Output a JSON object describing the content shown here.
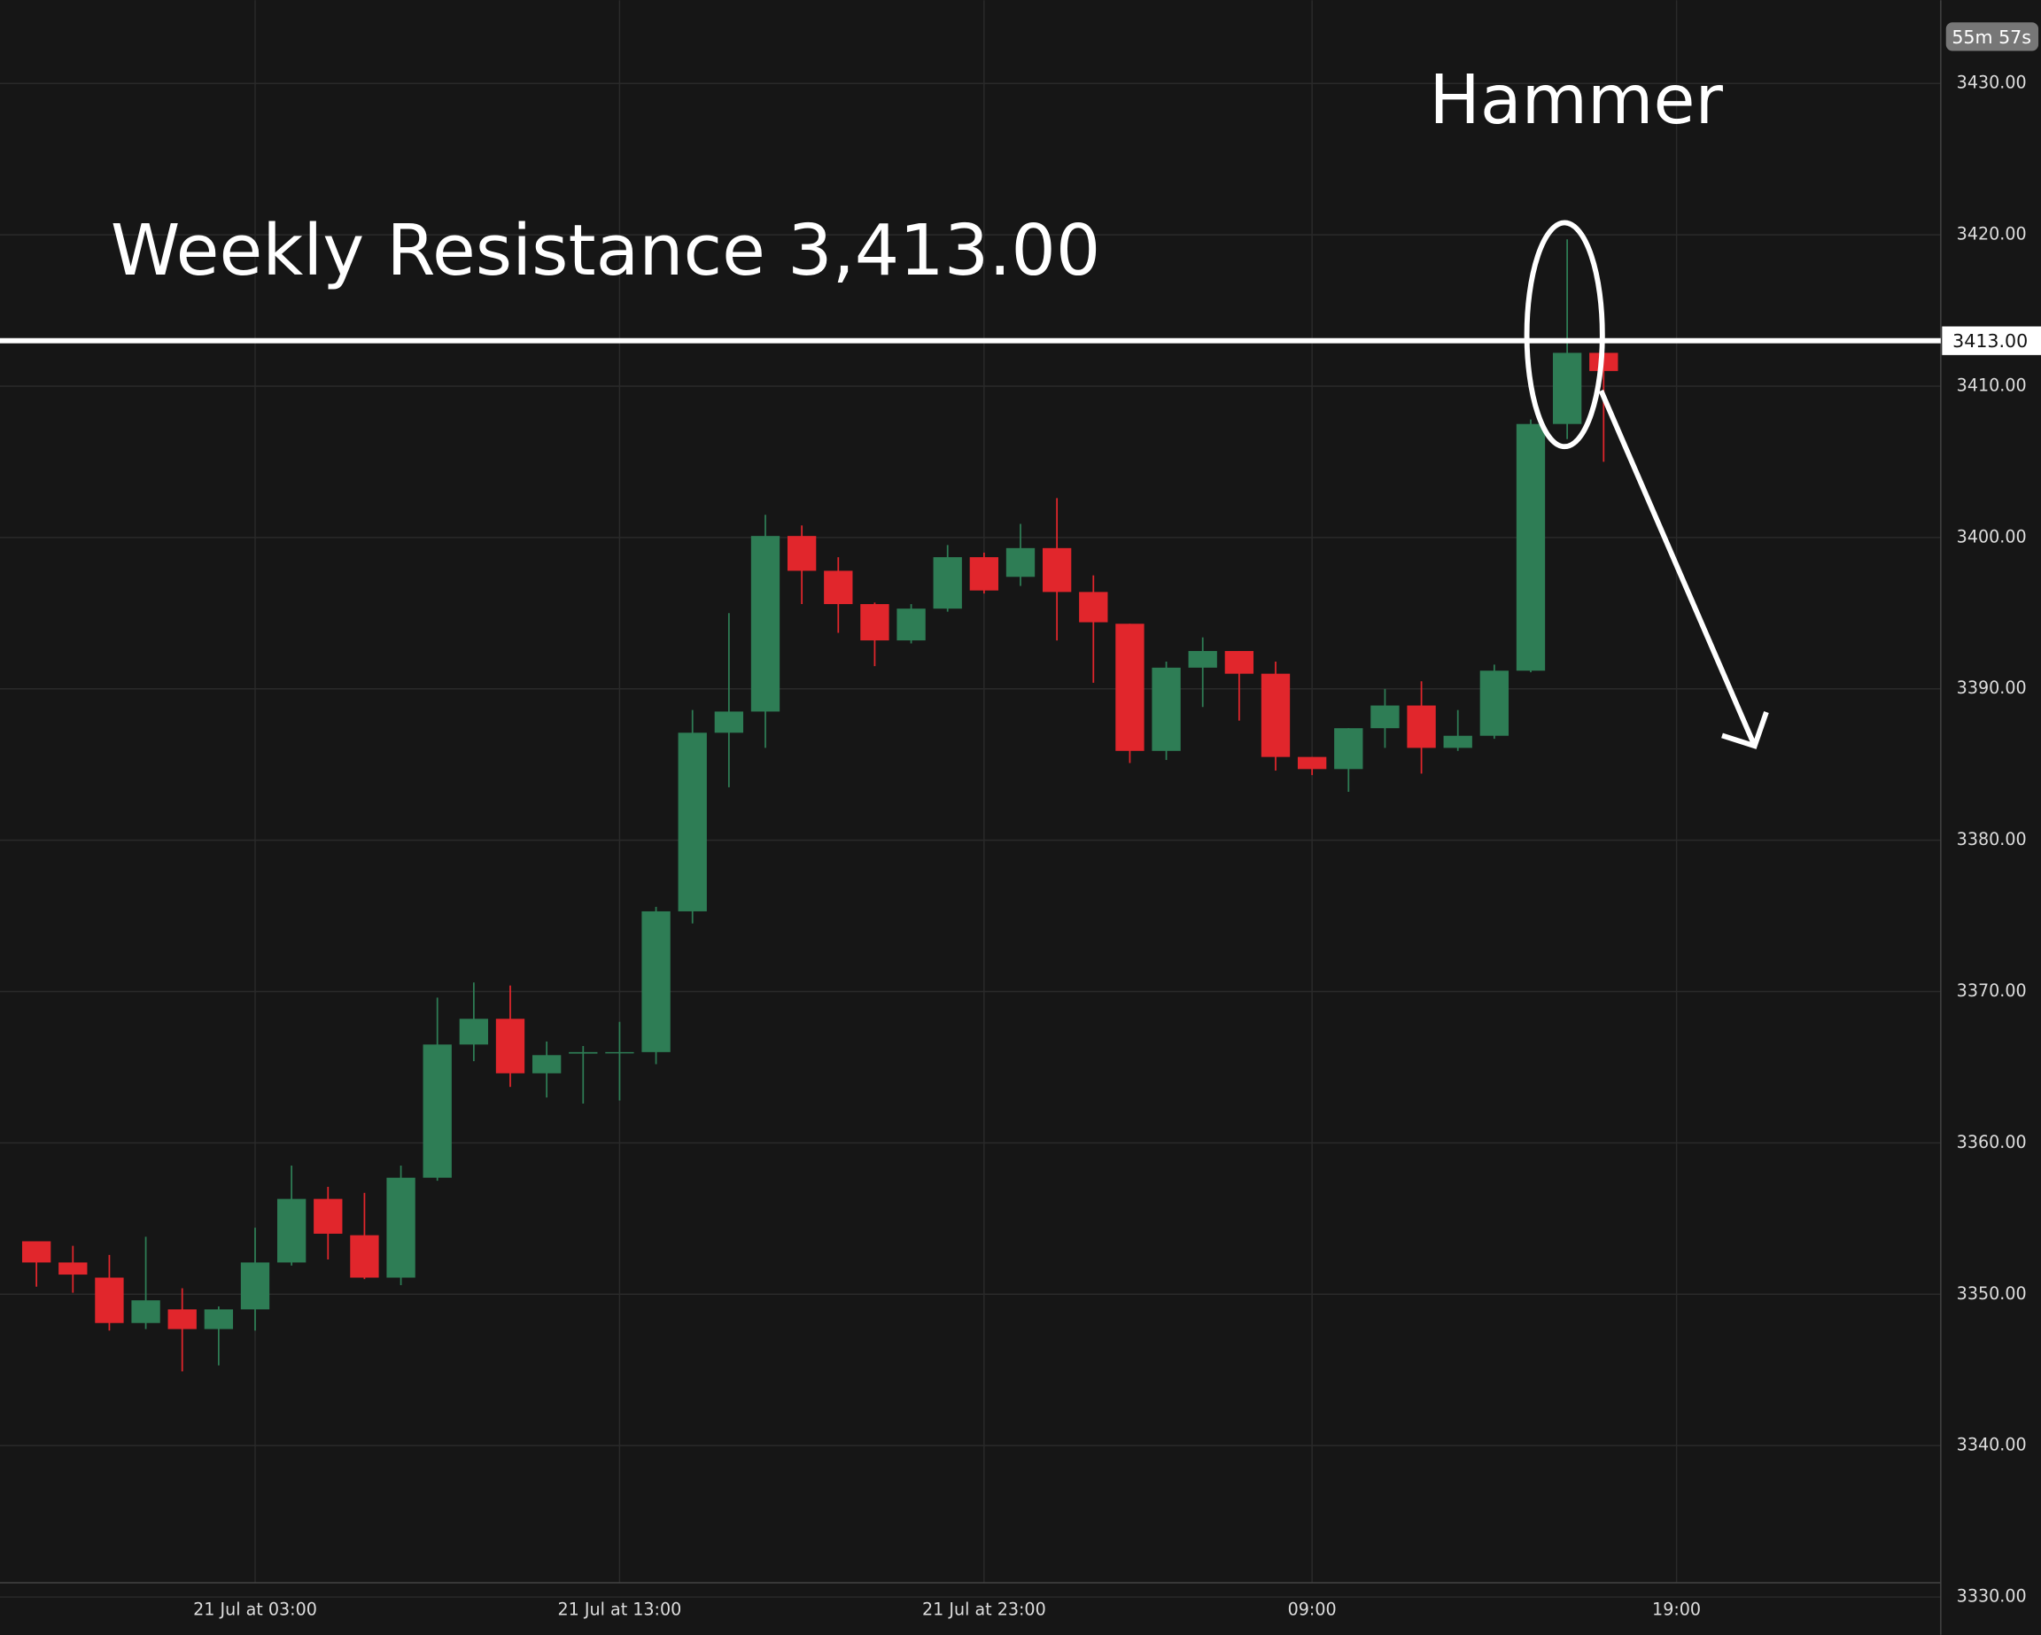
{
  "chart_data": {
    "type": "candlestick",
    "categories": [
      null,
      null,
      null,
      null,
      null,
      null,
      "21 Jul at 03:00",
      null,
      null,
      null,
      null,
      null,
      null,
      null,
      null,
      null,
      "21 Jul at 13:00",
      null,
      null,
      null,
      null,
      null,
      null,
      null,
      null,
      null,
      "21 Jul at 23:00",
      null,
      null,
      null,
      null,
      null,
      null,
      null,
      null,
      "09:00",
      null,
      null,
      null,
      null,
      null,
      null,
      null,
      null,
      null,
      "19:00"
    ],
    "open": [
      3353.5,
      3352.1,
      3351.1,
      3348.1,
      3349.0,
      3347.7,
      3349.0,
      3352.1,
      3356.3,
      3353.9,
      3351.1,
      3357.7,
      3366.5,
      3368.2,
      3364.6,
      3365.9,
      3366.0,
      3366.0,
      3375.3,
      3387.1,
      3388.5,
      3400.1,
      3397.8,
      3395.6,
      3393.2,
      3395.3,
      3398.7,
      3397.4,
      3399.3,
      3396.4,
      3394.3,
      3385.9,
      3391.4,
      3392.5,
      3391.0,
      3385.5,
      3384.7,
      3387.4,
      3388.9,
      3386.1,
      3386.9,
      3391.2,
      3407.5,
      3412.2,
      null,
      null
    ],
    "high": [
      3353.5,
      3353.2,
      3352.6,
      3353.8,
      3350.4,
      3349.2,
      3354.4,
      3358.5,
      3357.1,
      3356.7,
      3358.5,
      3369.6,
      3370.6,
      3370.4,
      3366.7,
      3366.4,
      3368.0,
      3375.6,
      3388.6,
      3395.0,
      3401.5,
      3400.8,
      3398.7,
      3395.7,
      3395.6,
      3399.5,
      3399.0,
      3400.9,
      3402.6,
      3397.5,
      3394.3,
      3391.8,
      3393.4,
      3392.5,
      3391.8,
      3385.5,
      3387.4,
      3390.0,
      3390.5,
      3388.6,
      3391.6,
      3407.8,
      3419.7,
      3412.2,
      null,
      null
    ],
    "low": [
      3350.5,
      3350.1,
      3347.6,
      3347.7,
      3344.9,
      3345.3,
      3347.6,
      3351.9,
      3352.3,
      3351.0,
      3350.6,
      3357.5,
      3365.4,
      3363.7,
      3363.0,
      3362.6,
      3362.8,
      3365.2,
      3374.5,
      3383.5,
      3386.1,
      3395.6,
      3393.7,
      3391.5,
      3393.0,
      3395.1,
      3396.3,
      3396.8,
      3393.2,
      3390.4,
      3385.1,
      3385.3,
      3388.8,
      3387.9,
      3384.6,
      3384.3,
      3383.2,
      3386.1,
      3384.4,
      3385.9,
      3386.7,
      3391.1,
      3406.5,
      3405.0,
      null,
      null
    ],
    "close": [
      3352.1,
      3351.3,
      3348.1,
      3349.6,
      3347.7,
      3349.0,
      3352.1,
      3356.3,
      3354.0,
      3351.1,
      3357.7,
      3366.5,
      3368.2,
      3364.6,
      3365.8,
      3366.0,
      3366.0,
      3375.3,
      3387.1,
      3388.5,
      3400.1,
      3397.8,
      3395.6,
      3393.2,
      3395.3,
      3398.7,
      3396.5,
      3399.3,
      3396.4,
      3394.4,
      3385.9,
      3391.4,
      3392.5,
      3391.0,
      3385.5,
      3384.7,
      3387.4,
      3388.9,
      3386.1,
      3386.9,
      3391.2,
      3407.5,
      3412.2,
      3411.0,
      null,
      null
    ],
    "up_color": "#2e7d55",
    "down_color": "#e1262c",
    "ylim": [
      3327.5,
      3435.5
    ],
    "yticks": [
      {
        "value": 3330,
        "label": "3330.00"
      },
      {
        "value": 3340,
        "label": "3340.00"
      },
      {
        "value": 3350,
        "label": "3350.00"
      },
      {
        "value": 3360,
        "label": "3360.00"
      },
      {
        "value": 3370,
        "label": "3370.00"
      },
      {
        "value": 3380,
        "label": "3380.00"
      },
      {
        "value": 3390,
        "label": "3390.00"
      },
      {
        "value": 3400,
        "label": "3400.00"
      },
      {
        "value": 3410,
        "label": "3410.00"
      },
      {
        "value": 3420,
        "label": "3420.00"
      },
      {
        "value": 3430,
        "label": "3430.00"
      }
    ],
    "grid": true,
    "resistance_line": {
      "value": 3413,
      "label": "3413.00"
    },
    "annotations": [
      "Weekly Resistance 3,413.00",
      "Hammer"
    ],
    "countdown": "55m 57s"
  }
}
